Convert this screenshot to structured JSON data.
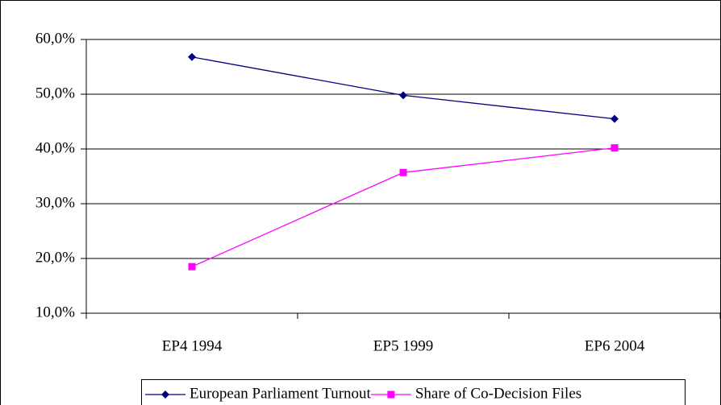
{
  "chart_data": {
    "type": "line",
    "categories": [
      "EP4 1994",
      "EP5 1999",
      "EP6 2004"
    ],
    "series": [
      {
        "name": "European Parliament Turnout",
        "color": "#000080",
        "marker": "diamond",
        "values": [
          56.8,
          49.8,
          45.5
        ]
      },
      {
        "name": "Share of Co-Decision Files",
        "color": "#ff00ff",
        "marker": "square",
        "values": [
          18.5,
          35.7,
          40.2
        ]
      }
    ],
    "ylim": [
      10,
      60
    ],
    "yticks": [
      {
        "value": 10,
        "label": "10,0%"
      },
      {
        "value": 20,
        "label": "20,0%"
      },
      {
        "value": 30,
        "label": "30,0%"
      },
      {
        "value": 40,
        "label": "40,0%"
      },
      {
        "value": 50,
        "label": "50,0%"
      },
      {
        "value": 60,
        "label": "60,0%"
      }
    ],
    "grid": true,
    "legend": "bottom"
  }
}
